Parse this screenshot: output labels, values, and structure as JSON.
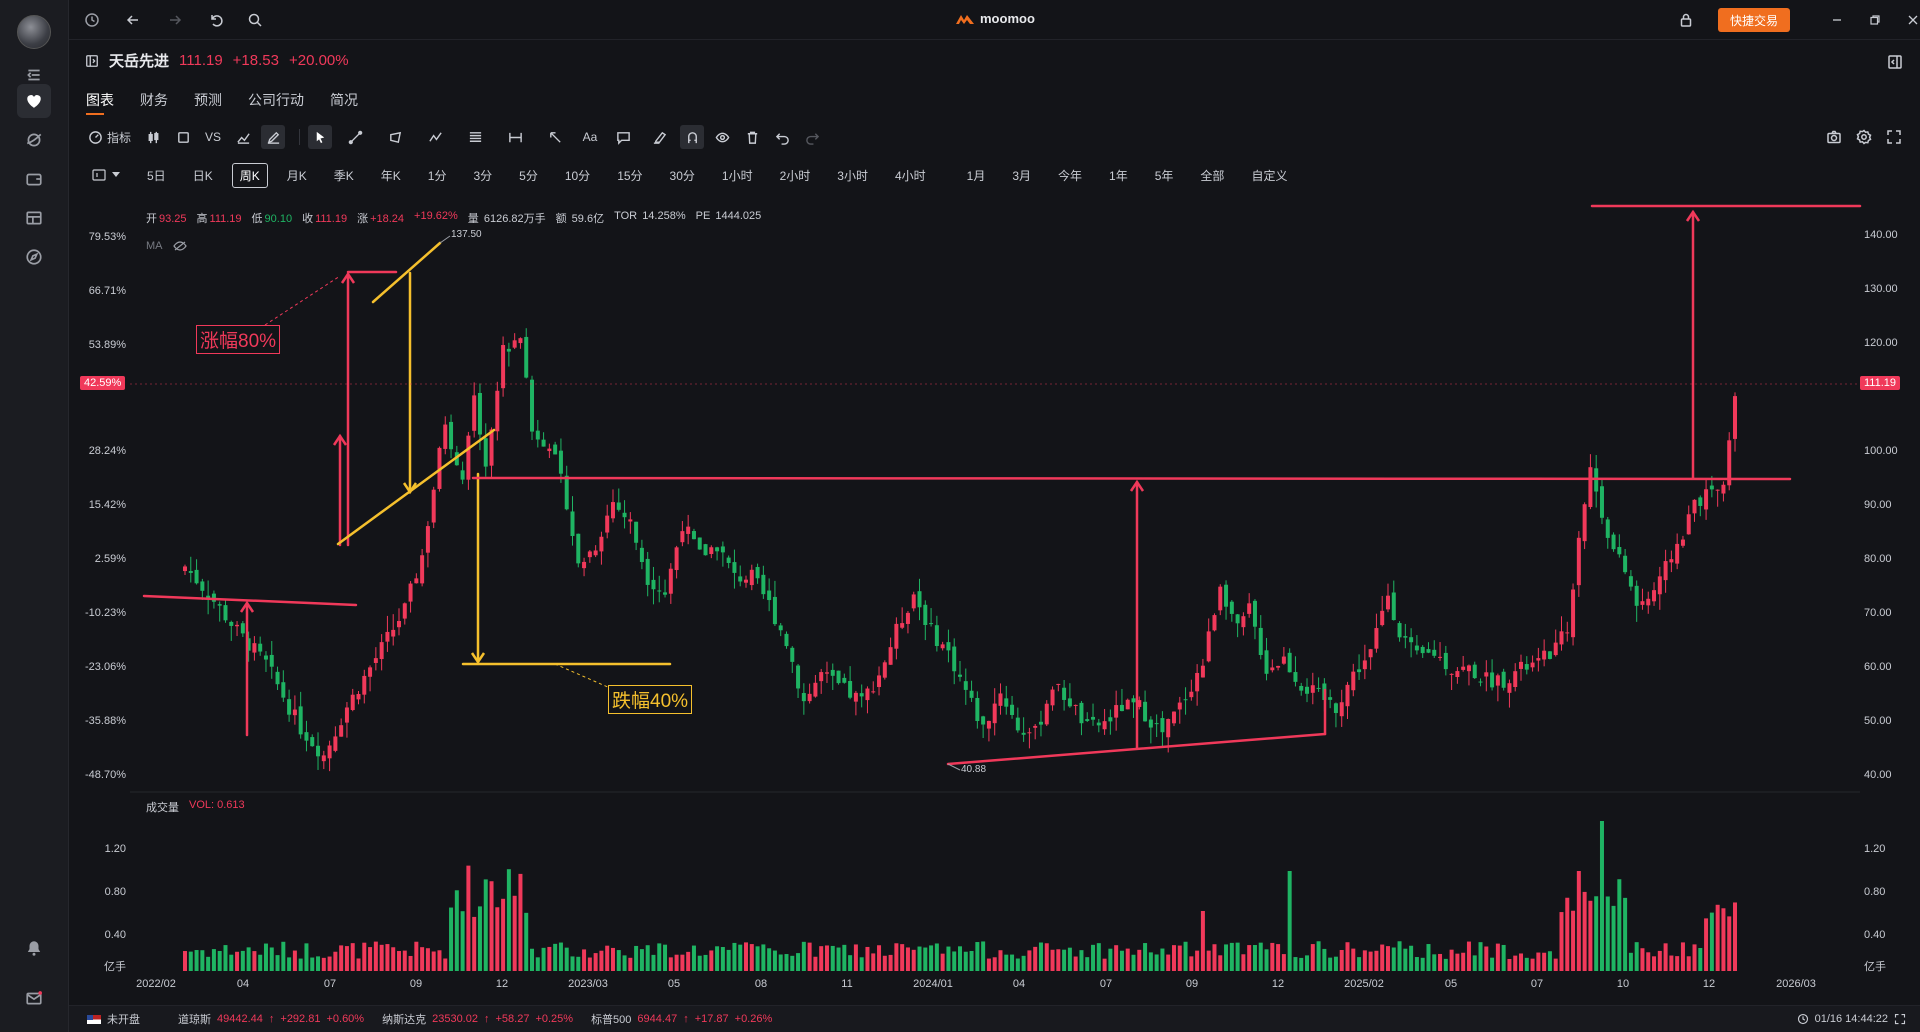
{
  "app": {
    "brand": "moomoo",
    "quick_trade": "快捷交易"
  },
  "stock": {
    "name": "天岳先进",
    "price": "111.19",
    "change": "+18.53",
    "change_pct": "+20.00%"
  },
  "tabs": [
    "图表",
    "财务",
    "预测",
    "公司行动",
    "简况"
  ],
  "toolbar": {
    "indicator": "指标",
    "vs": "VS",
    "text_tool": "Aa"
  },
  "periods": [
    "5日",
    "日K",
    "周K",
    "月K",
    "季K",
    "年K",
    "1分",
    "3分",
    "5分",
    "10分",
    "15分",
    "30分",
    "1小时",
    "2小时",
    "3小时",
    "4小时"
  ],
  "ranges": [
    "1月",
    "3月",
    "今年",
    "1年",
    "5年",
    "全部",
    "自定义"
  ],
  "info": {
    "open_label": "开",
    "open": "93.25",
    "high_label": "高",
    "high": "111.19",
    "low_label": "低",
    "low": "90.10",
    "close_label": "收",
    "close": "111.19",
    "chg_label": "涨",
    "chg": "+18.24",
    "chg_pct": "+19.62%",
    "vol_label": "量",
    "vol": "6126.82万手",
    "amt_label": "额",
    "amt": "59.6亿",
    "tor_label": "TOR",
    "tor": "14.258%",
    "pe_label": "PE",
    "pe": "1444.025"
  },
  "ma_label": "MA",
  "volume": {
    "label": "成交量",
    "vol": "VOL: 0.613",
    "unit": "亿手",
    "ticks": [
      "1.20",
      "0.80",
      "0.40"
    ]
  },
  "axis_left": [
    "79.53%",
    "66.71%",
    "53.89%",
    "28.24%",
    "15.42%",
    "2.59%",
    "-10.23%",
    "-23.06%",
    "-35.88%",
    "-48.70%"
  ],
  "axis_left_marker": "42.59%",
  "axis_right": [
    "140.00",
    "130.00",
    "120.00",
    "100.00",
    "90.00",
    "80.00",
    "70.00",
    "60.00",
    "50.00",
    "40.00"
  ],
  "axis_right_marker": "111.19",
  "x_labels": [
    "2022/02",
    "04",
    "07",
    "09",
    "12",
    "2023/03",
    "05",
    "08",
    "11",
    "2024/01",
    "04",
    "07",
    "09",
    "12",
    "2025/02",
    "05",
    "07",
    "10",
    "12",
    "2026/03"
  ],
  "annotations": {
    "high_mark": "137.50",
    "low_mark": "40.88",
    "rise": "涨幅80%",
    "fall": "跌幅40%"
  },
  "footer": {
    "market_status": "未开盘",
    "dji_label": "道琼斯",
    "dji": "49442.44",
    "dji_chg": "+292.81",
    "dji_pct": "+0.60%",
    "ndx_label": "纳斯达克",
    "ndx": "23530.02",
    "ndx_chg": "+58.27",
    "ndx_pct": "+0.25%",
    "spx_label": "标普500",
    "spx": "6944.47",
    "spx_chg": "+17.87",
    "spx_pct": "+0.26%",
    "time": "01/16 14:44:22"
  },
  "colors": {
    "up": "#f0395a",
    "down": "#1fb463",
    "accent": "#f06e1f",
    "annotation_yellow": "#f5c02d"
  }
}
